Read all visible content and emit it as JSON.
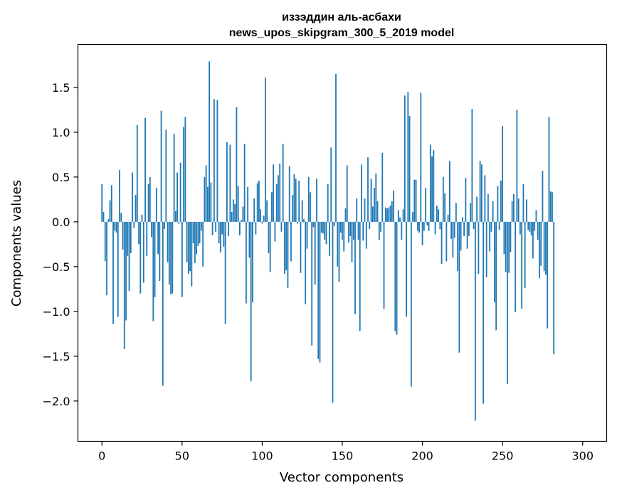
{
  "chart_data": {
    "type": "bar",
    "title": [
      "иззэддин аль-асбахи",
      "news_upos_skipgram_300_5_2019 model"
    ],
    "xlabel": "Vector components",
    "ylabel": "Components values",
    "xlim": [
      -15,
      315
    ],
    "ylim": [
      -2.45,
      1.98
    ],
    "xticks": [
      0,
      50,
      100,
      150,
      200,
      250,
      300
    ],
    "yticks": [
      -2.0,
      -1.5,
      -1.0,
      -0.5,
      0.0,
      0.5,
      1.0,
      1.5
    ],
    "ytick_labels": [
      "−2.0",
      "−1.5",
      "−1.0",
      "−0.5",
      "0.0",
      "0.5",
      "1.0",
      "1.5"
    ],
    "grid": false,
    "bar_color": "#1f77b4",
    "values": [
      0.42,
      0.11,
      -0.44,
      -0.82,
      0.03,
      0.24,
      0.41,
      -1.14,
      -0.1,
      -0.12,
      -1.06,
      0.58,
      0.1,
      -0.31,
      -1.42,
      -1.1,
      -0.38,
      -0.77,
      -0.35,
      0.55,
      -0.07,
      0.3,
      1.08,
      -0.25,
      -0.8,
      0.08,
      -0.68,
      1.16,
      -0.38,
      0.42,
      0.5,
      -0.17,
      -1.11,
      -0.84,
      0.38,
      -0.36,
      -0.66,
      1.24,
      -1.83,
      -0.08,
      1.03,
      -0.45,
      -0.7,
      -0.81,
      -0.8,
      0.98,
      0.12,
      0.55,
      -0.02,
      0.66,
      -0.84,
      1.06,
      1.17,
      -0.45,
      -0.58,
      -0.55,
      -0.72,
      -0.24,
      -0.46,
      -0.36,
      -0.27,
      -0.24,
      -0.1,
      -0.5,
      0.5,
      0.63,
      0.39,
      1.79,
      0.44,
      -0.15,
      1.37,
      -0.11,
      1.36,
      -0.24,
      -0.34,
      -0.14,
      -0.28,
      -1.14,
      0.89,
      -0.16,
      0.86,
      0.11,
      0.25,
      0.2,
      1.28,
      0.4,
      -0.15,
      0.02,
      0.17,
      0.87,
      -0.91,
      0.39,
      -0.4,
      -1.78,
      -0.9,
      0.26,
      -0.14,
      0.43,
      0.46,
      0.14,
      -0.02,
      0.07,
      1.61,
      0.24,
      -0.35,
      -0.56,
      0.33,
      0.64,
      -0.22,
      0.42,
      0.52,
      0.65,
      -0.11,
      0.87,
      -0.58,
      -0.54,
      -0.74,
      0.62,
      -0.44,
      0.3,
      0.53,
      0.48,
      -0.02,
      0.46,
      -0.57,
      0.24,
      0.03,
      -0.92,
      -0.3,
      0.5,
      0.33,
      -1.38,
      -0.06,
      -0.7,
      0.48,
      -1.53,
      -1.57,
      -0.12,
      -0.13,
      -0.2,
      -0.25,
      0.42,
      -0.38,
      0.83,
      -2.02,
      -0.05,
      1.65,
      -0.5,
      -0.67,
      -0.12,
      -0.2,
      -0.33,
      0.15,
      0.63,
      -0.23,
      -0.16,
      -0.45,
      -0.2,
      -1.03,
      0.26,
      -0.2,
      -1.22,
      0.64,
      -0.21,
      0.26,
      -0.3,
      0.72,
      -0.08,
      0.48,
      0.17,
      0.38,
      0.54,
      0.23,
      -0.2,
      -0.11,
      0.77,
      -0.97,
      0.16,
      0.15,
      0.16,
      0.18,
      0.23,
      0.35,
      -1.22,
      -1.26,
      0.13,
      0.05,
      -0.2,
      0.14,
      1.41,
      -1.06,
      1.45,
      1.18,
      -1.84,
      0.11,
      0.47,
      0.47,
      -0.1,
      -0.12,
      1.44,
      -0.26,
      -0.1,
      0.38,
      -0.04,
      -0.1,
      0.86,
      0.73,
      0.8,
      -0.14,
      0.18,
      0.14,
      -0.08,
      -0.47,
      0.5,
      0.32,
      -0.44,
      0.08,
      0.68,
      -0.19,
      -0.4,
      -0.18,
      0.21,
      -0.55,
      -1.46,
      -0.32,
      0.05,
      -0.16,
      0.49,
      -0.3,
      -0.16,
      0.21,
      1.26,
      -0.08,
      -2.22,
      0.28,
      -0.58,
      0.68,
      0.64,
      -2.03,
      0.52,
      -0.62,
      0.31,
      -0.33,
      -0.11,
      0.23,
      -0.9,
      -1.21,
      0.4,
      -0.09,
      0.46,
      1.07,
      -0.36,
      -0.56,
      -1.81,
      -0.57,
      -0.34,
      0.23,
      0.31,
      -1.01,
      1.25,
      0.26,
      -0.14,
      -0.97,
      0.42,
      -0.74,
      0.25,
      -0.09,
      -0.11,
      -0.15,
      -0.41,
      -0.1,
      0.13,
      -0.2,
      -0.63,
      -0.49,
      0.57,
      -0.55,
      -0.59,
      -1.19,
      1.17,
      0.34,
      0.33,
      -1.48
    ]
  }
}
